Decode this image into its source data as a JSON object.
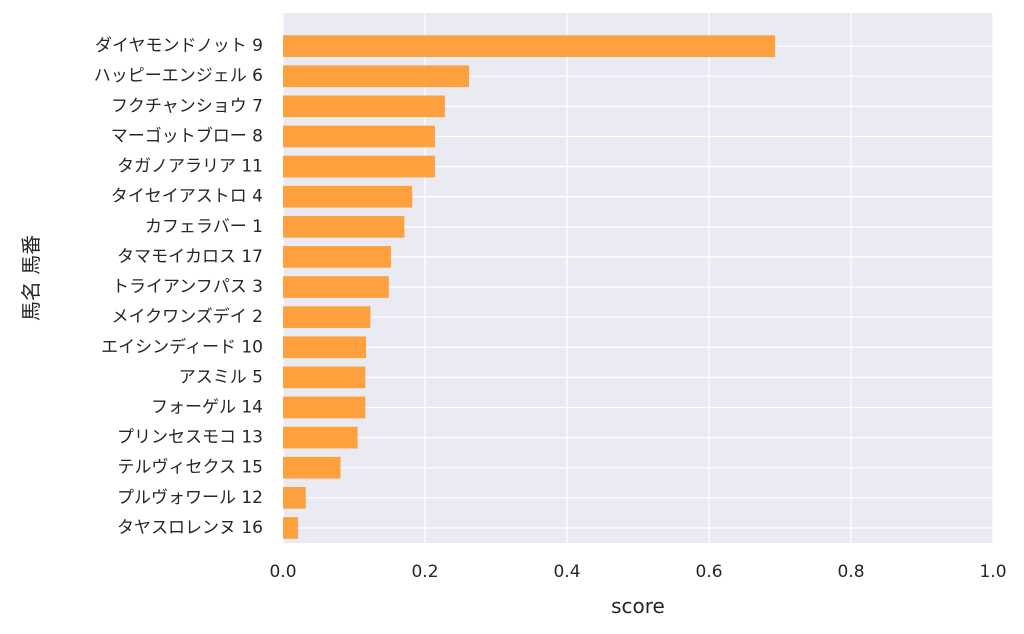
{
  "chart_data": {
    "type": "bar",
    "orientation": "horizontal",
    "categories": [
      "ダイヤモンドノット 9",
      "ハッピーエンジェル 6",
      "フクチャンショウ 7",
      "マーゴットブロー 8",
      "タガノアラリア 11",
      "タイセイアストロ 4",
      "カフェラバー 1",
      "タマモイカロス 17",
      "トライアンフパス 3",
      "メイクワンズデイ 2",
      "エイシンディード 10",
      "アスミル 5",
      "フォーゲル 14",
      "プリンセスモコ 13",
      "テルヴィセクス 15",
      "プルヴォワール 12",
      "タヤスロレンヌ 16"
    ],
    "values": [
      0.693,
      0.262,
      0.228,
      0.214,
      0.214,
      0.182,
      0.171,
      0.152,
      0.149,
      0.123,
      0.117,
      0.116,
      0.116,
      0.105,
      0.081,
      0.032,
      0.021
    ],
    "xlabel": "score",
    "ylabel": "馬名 馬番",
    "xlim": [
      0,
      1.0
    ],
    "xticks": [
      "0.0",
      "0.2",
      "0.4",
      "0.6",
      "0.8",
      "1.0"
    ],
    "grid": true,
    "colors": {
      "bar": "#ff9c33",
      "plot_background": "#eaeaf2",
      "grid": "#ffffff",
      "text": "#262626"
    }
  }
}
